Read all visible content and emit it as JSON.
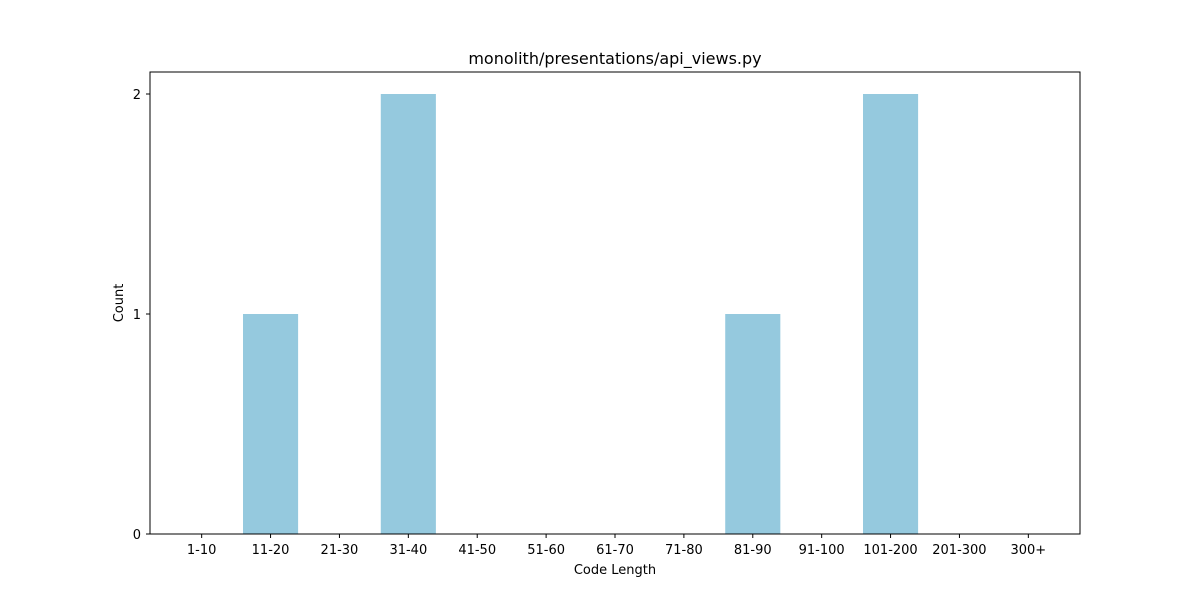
{
  "chart_data": {
    "type": "bar",
    "title": "monolith/presentations/api_views.py",
    "xlabel": "Code Length",
    "ylabel": "Count",
    "categories": [
      "1-10",
      "11-20",
      "21-30",
      "31-40",
      "41-50",
      "51-60",
      "61-70",
      "71-80",
      "81-90",
      "91-100",
      "101-200",
      "201-300",
      "300+"
    ],
    "values": [
      0,
      1,
      0,
      2,
      0,
      0,
      0,
      0,
      1,
      0,
      2,
      0,
      0
    ],
    "ylim": [
      0,
      2.1
    ],
    "yticks": [
      0,
      1,
      2
    ],
    "bar_color": "#95c9de",
    "grid": false,
    "legend": "none"
  }
}
